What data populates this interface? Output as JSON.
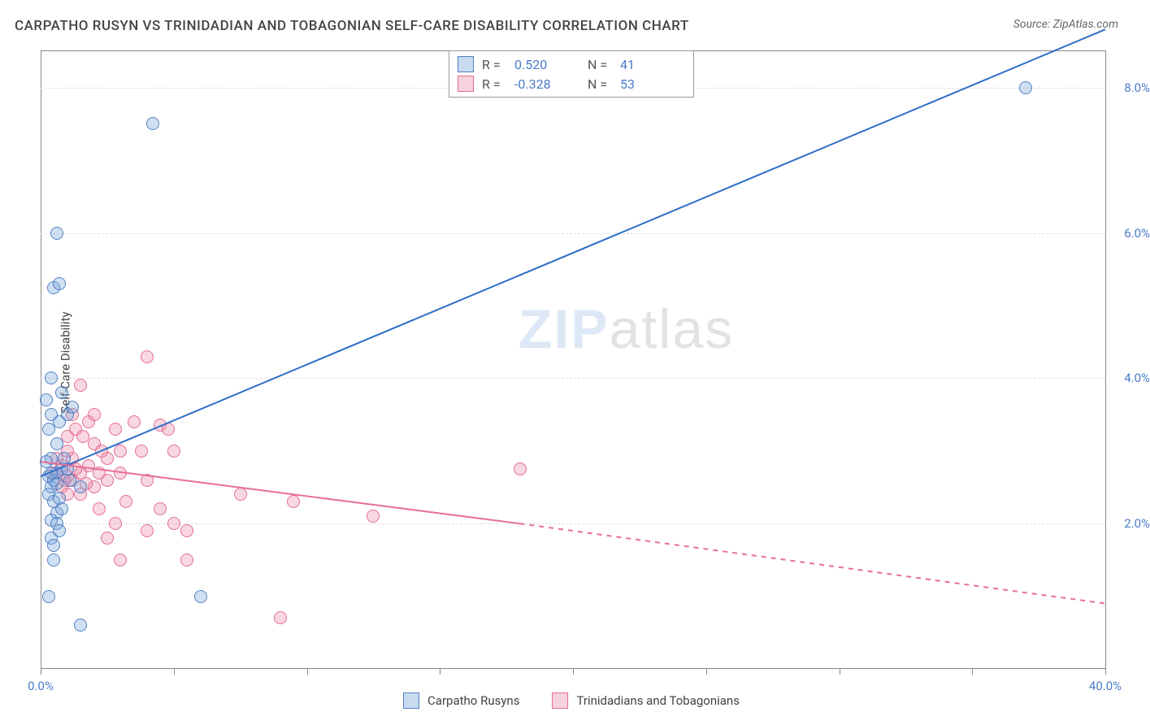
{
  "title": "CARPATHO RUSYN VS TRINIDADIAN AND TOBAGONIAN SELF-CARE DISABILITY CORRELATION CHART",
  "source": "Source: ZipAtlas.com",
  "y_axis_title": "Self-Care Disability",
  "watermark": {
    "zip": "ZIP",
    "atlas": "atlas"
  },
  "chart": {
    "type": "scatter",
    "xlim": [
      0,
      40
    ],
    "ylim": [
      0,
      8.5
    ],
    "x_ticks": [
      0,
      5,
      10,
      15,
      20,
      25,
      30,
      35,
      40
    ],
    "x_tick_labels": [
      "0.0%",
      "",
      "",
      "",
      "",
      "",
      "",
      "",
      "40.0%"
    ],
    "y_gridlines": [
      2,
      4,
      6,
      8
    ],
    "y_tick_labels": [
      "2.0%",
      "4.0%",
      "6.0%",
      "8.0%"
    ],
    "background_color": "#ffffff",
    "grid_color": "#dddddd",
    "axis_color": "#888888",
    "label_color": "#4a7bc8",
    "marker_radius": 8,
    "marker_border_width": 1.5
  },
  "series": {
    "blue": {
      "name": "Carpatho Rusyns",
      "fill": "rgba(120,165,220,0.35)",
      "stroke": "rgba(70,120,190,0.9)",
      "line_color": "#2e6fc9",
      "R": "0.520",
      "N": "41",
      "trend": {
        "x1": 0,
        "y1": 2.65,
        "x2": 40,
        "y2": 8.8
      },
      "points": [
        [
          0.3,
          2.65
        ],
        [
          0.4,
          2.5
        ],
        [
          0.2,
          3.7
        ],
        [
          0.5,
          5.25
        ],
        [
          0.7,
          5.3
        ],
        [
          0.6,
          6.0
        ],
        [
          4.2,
          7.5
        ],
        [
          0.7,
          3.4
        ],
        [
          0.3,
          3.3
        ],
        [
          0.6,
          3.1
        ],
        [
          0.4,
          2.9
        ],
        [
          0.8,
          2.75
        ],
        [
          1.0,
          3.5
        ],
        [
          1.2,
          3.6
        ],
        [
          0.3,
          2.4
        ],
        [
          0.5,
          2.3
        ],
        [
          0.6,
          2.15
        ],
        [
          0.8,
          2.2
        ],
        [
          0.4,
          2.05
        ],
        [
          0.6,
          2.0
        ],
        [
          0.4,
          1.8
        ],
        [
          0.5,
          1.7
        ],
        [
          0.7,
          1.9
        ],
        [
          0.5,
          1.5
        ],
        [
          0.3,
          1.0
        ],
        [
          0.8,
          3.8
        ],
        [
          0.5,
          2.6
        ],
        [
          0.6,
          2.7
        ],
        [
          1.5,
          2.5
        ],
        [
          6.0,
          1.0
        ],
        [
          1.5,
          0.6
        ],
        [
          1.0,
          2.75
        ],
        [
          0.4,
          3.5
        ],
        [
          0.2,
          2.85
        ],
        [
          0.4,
          2.7
        ],
        [
          37.0,
          8.0
        ],
        [
          0.7,
          2.35
        ],
        [
          0.9,
          2.9
        ],
        [
          1.1,
          2.6
        ],
        [
          0.4,
          4.0
        ],
        [
          0.6,
          2.55
        ]
      ]
    },
    "pink": {
      "name": "Trinidadians and Tobagonians",
      "fill": "rgba(235,140,165,0.35)",
      "stroke": "rgba(225,100,140,0.9)",
      "line_color": "#e76f94",
      "R": "-0.328",
      "N": "53",
      "trend_solid": {
        "x1": 0,
        "y1": 2.85,
        "x2": 18,
        "y2": 2.0
      },
      "trend_dashed": {
        "x1": 18,
        "y1": 2.0,
        "x2": 40,
        "y2": 0.9
      },
      "points": [
        [
          0.5,
          2.7
        ],
        [
          0.8,
          2.8
        ],
        [
          1.0,
          2.65
        ],
        [
          1.2,
          2.9
        ],
        [
          1.5,
          2.7
        ],
        [
          1.0,
          3.0
        ],
        [
          1.3,
          3.3
        ],
        [
          1.8,
          3.4
        ],
        [
          2.0,
          3.1
        ],
        [
          2.5,
          2.9
        ],
        [
          1.5,
          3.9
        ],
        [
          1.2,
          3.5
        ],
        [
          2.0,
          3.5
        ],
        [
          2.8,
          3.3
        ],
        [
          3.0,
          3.0
        ],
        [
          4.5,
          3.35
        ],
        [
          4.8,
          3.3
        ],
        [
          4.0,
          4.3
        ],
        [
          0.8,
          2.5
        ],
        [
          1.0,
          2.4
        ],
        [
          1.2,
          2.6
        ],
        [
          1.5,
          2.4
        ],
        [
          2.0,
          2.5
        ],
        [
          2.5,
          2.6
        ],
        [
          3.0,
          2.7
        ],
        [
          2.2,
          2.2
        ],
        [
          3.2,
          2.3
        ],
        [
          4.0,
          2.6
        ],
        [
          2.8,
          2.0
        ],
        [
          4.0,
          1.9
        ],
        [
          4.5,
          2.2
        ],
        [
          5.0,
          2.0
        ],
        [
          5.5,
          1.9
        ],
        [
          2.5,
          1.8
        ],
        [
          3.0,
          1.5
        ],
        [
          5.5,
          1.5
        ],
        [
          5.0,
          3.0
        ],
        [
          7.5,
          2.4
        ],
        [
          9.5,
          2.3
        ],
        [
          12.5,
          2.1
        ],
        [
          9.0,
          0.7
        ],
        [
          18.0,
          2.75
        ],
        [
          1.8,
          2.8
        ],
        [
          2.2,
          2.7
        ],
        [
          0.6,
          2.9
        ],
        [
          1.0,
          3.2
        ],
        [
          1.3,
          2.75
        ],
        [
          3.5,
          3.4
        ],
        [
          3.8,
          3.0
        ],
        [
          1.6,
          3.2
        ],
        [
          2.3,
          3.0
        ],
        [
          0.9,
          2.6
        ],
        [
          1.7,
          2.55
        ]
      ]
    }
  },
  "legend_top": {
    "r_label": "R =",
    "n_label": "N ="
  },
  "legend_bottom": {
    "items": [
      "blue",
      "pink"
    ]
  }
}
